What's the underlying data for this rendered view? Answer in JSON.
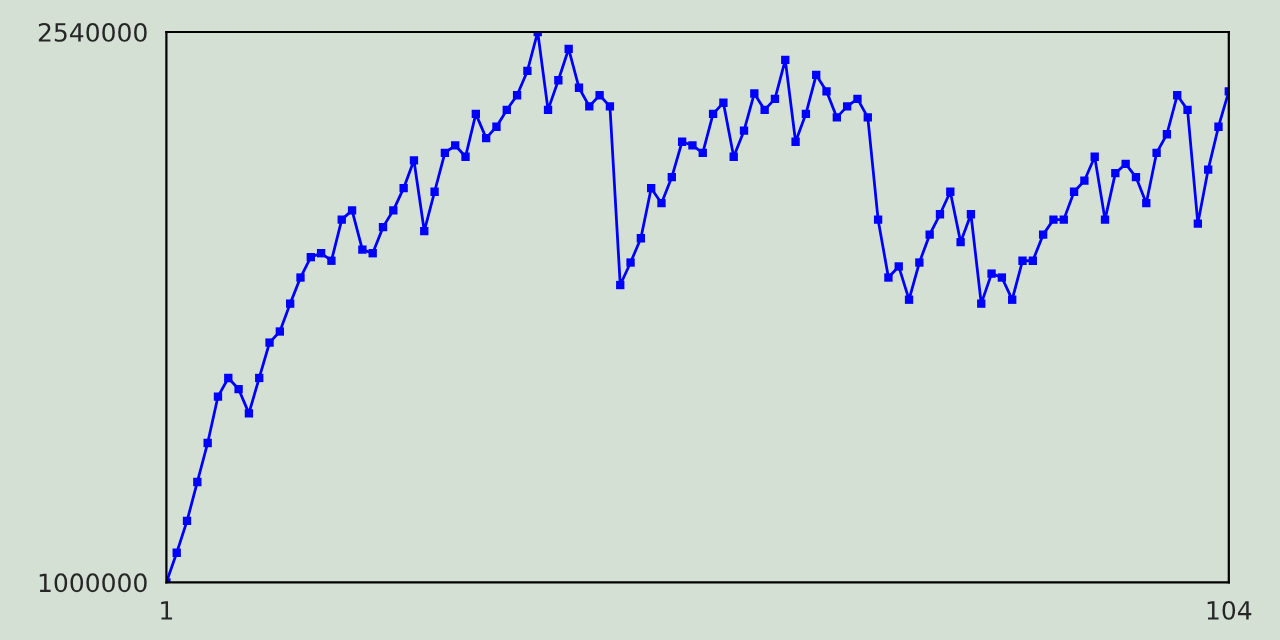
{
  "chart_data": {
    "type": "line",
    "x": [
      1,
      2,
      3,
      4,
      5,
      6,
      7,
      8,
      9,
      10,
      11,
      12,
      13,
      14,
      15,
      16,
      17,
      18,
      19,
      20,
      21,
      22,
      23,
      24,
      25,
      26,
      27,
      28,
      29,
      30,
      31,
      32,
      33,
      34,
      35,
      36,
      37,
      38,
      39,
      40,
      41,
      42,
      43,
      44,
      45,
      46,
      47,
      48,
      49,
      50,
      51,
      52,
      53,
      54,
      55,
      56,
      57,
      58,
      59,
      60,
      61,
      62,
      63,
      64,
      65,
      66,
      67,
      68,
      69,
      70,
      71,
      72,
      73,
      74,
      75,
      76,
      77,
      78,
      79,
      80,
      81,
      82,
      83,
      84,
      85,
      86,
      87,
      88,
      89,
      90,
      91,
      92,
      93,
      94,
      95,
      96,
      97,
      98,
      99,
      100,
      101,
      102,
      103,
      104
    ],
    "series": [
      {
        "color": "#0000ff",
        "values": [
          1000000,
          1083000,
          1172000,
          1281000,
          1390000,
          1520000,
          1572000,
          1541000,
          1473000,
          1572000,
          1671000,
          1702000,
          1780000,
          1853000,
          1910000,
          1921000,
          1900000,
          2015000,
          2041000,
          1931000,
          1921000,
          1994000,
          2041000,
          2103000,
          2181000,
          1983000,
          2093000,
          2202000,
          2223000,
          2191000,
          2311000,
          2243000,
          2275000,
          2322000,
          2363000,
          2431000,
          2540000,
          2322000,
          2405000,
          2493000,
          2384000,
          2332000,
          2363000,
          2332000,
          1832000,
          1895000,
          1963000,
          2103000,
          2061000,
          2134000,
          2233000,
          2223000,
          2202000,
          2311000,
          2342000,
          2191000,
          2264000,
          2368000,
          2322000,
          2353000,
          2462000,
          2233000,
          2311000,
          2420000,
          2374000,
          2301000,
          2332000,
          2353000,
          2301000,
          2015000,
          1853000,
          1884000,
          1791000,
          1895000,
          1973000,
          2030000,
          2093000,
          1952000,
          2030000,
          1780000,
          1864000,
          1853000,
          1791000,
          1900000,
          1900000,
          1973000,
          2015000,
          2015000,
          2093000,
          2124000,
          2191000,
          2015000,
          2145000,
          2171000,
          2134000,
          2061000,
          2202000,
          2254000,
          2363000,
          2322000,
          2004000,
          2155000,
          2275000,
          2374000
        ]
      }
    ],
    "xlim": [
      1,
      104
    ],
    "ylim": [
      1000000,
      2540000
    ],
    "xticks": [
      1,
      104
    ],
    "yticks": [
      1000000,
      2540000
    ],
    "marker": "square",
    "line_style": "solid"
  }
}
